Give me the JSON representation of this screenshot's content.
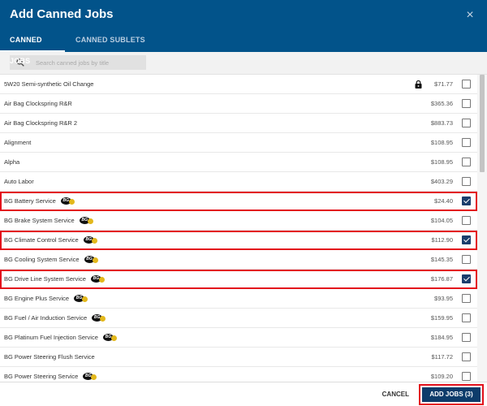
{
  "dialog": {
    "title": "Add Canned Jobs",
    "close_icon": "×"
  },
  "tabs": [
    {
      "label": "CANNED JOBS",
      "active": true
    },
    {
      "label": "CANNED SUBLETS",
      "active": false
    }
  ],
  "search": {
    "placeholder": "Search canned jobs by title",
    "value": ""
  },
  "jobs": [
    {
      "name": "5W20 Semi-synthetic Oil Change",
      "price": "$71.77",
      "locked": true,
      "bg": false,
      "checked": false,
      "highlighted": false
    },
    {
      "name": "Air Bag Clockspring R&R",
      "price": "$365.36",
      "locked": false,
      "bg": false,
      "checked": false,
      "highlighted": false
    },
    {
      "name": "Air Bag Clockspring R&R 2",
      "price": "$883.73",
      "locked": false,
      "bg": false,
      "checked": false,
      "highlighted": false
    },
    {
      "name": "Alignment",
      "price": "$108.95",
      "locked": false,
      "bg": false,
      "checked": false,
      "highlighted": false
    },
    {
      "name": "Alpha",
      "price": "$108.95",
      "locked": false,
      "bg": false,
      "checked": false,
      "highlighted": false
    },
    {
      "name": "Auto Labor",
      "price": "$403.29",
      "locked": false,
      "bg": false,
      "checked": false,
      "highlighted": false
    },
    {
      "name": "BG Battery Service",
      "price": "$24.40",
      "locked": false,
      "bg": true,
      "checked": true,
      "highlighted": true
    },
    {
      "name": "BG Brake System Service",
      "price": "$104.05",
      "locked": false,
      "bg": true,
      "checked": false,
      "highlighted": false
    },
    {
      "name": "BG Climate Control Service",
      "price": "$112.90",
      "locked": false,
      "bg": true,
      "checked": true,
      "highlighted": true
    },
    {
      "name": "BG Cooling System Service",
      "price": "$145.35",
      "locked": false,
      "bg": true,
      "checked": false,
      "highlighted": false
    },
    {
      "name": "BG Drive Line System Service",
      "price": "$176.87",
      "locked": false,
      "bg": true,
      "checked": true,
      "highlighted": true
    },
    {
      "name": "BG Engine Plus Service",
      "price": "$93.95",
      "locked": false,
      "bg": true,
      "checked": false,
      "highlighted": false
    },
    {
      "name": "BG Fuel / Air Induction Service",
      "price": "$159.95",
      "locked": false,
      "bg": true,
      "checked": false,
      "highlighted": false
    },
    {
      "name": "BG Platinum Fuel Injection Service",
      "price": "$184.95",
      "locked": false,
      "bg": true,
      "checked": false,
      "highlighted": false
    },
    {
      "name": "BG Power Steering Flush Service",
      "price": "$117.72",
      "locked": false,
      "bg": false,
      "checked": false,
      "highlighted": false
    },
    {
      "name": "BG Power Steering Service",
      "price": "$109.20",
      "locked": false,
      "bg": true,
      "checked": false,
      "highlighted": false
    }
  ],
  "bg_badge_text": "BG",
  "footer": {
    "cancel_label": "CANCEL",
    "add_label": "ADD JOBS (3)"
  },
  "colors": {
    "header": "#02538a",
    "primary_button": "#0d3c6b",
    "highlight": "#e3111c",
    "checkbox_checked": "#1b3e6d"
  }
}
